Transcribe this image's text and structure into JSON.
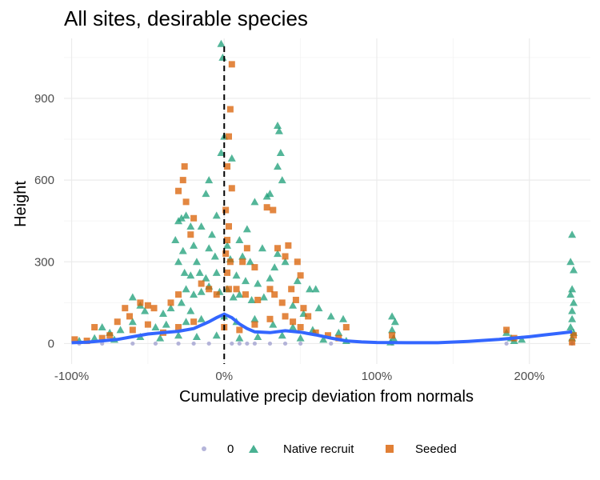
{
  "chart_data": {
    "type": "scatter",
    "title": "All sites, desirable species",
    "xlabel": "Cumulative precip deviation from normals",
    "ylabel": "Height",
    "xlim": [
      -1.05,
      2.4
    ],
    "ylim": [
      -75,
      1120
    ],
    "x_ticks": [
      -1,
      0,
      1,
      2
    ],
    "x_tick_labels": [
      "-100%",
      "0%",
      "100%",
      "200%"
    ],
    "y_ticks": [
      0,
      300,
      600,
      900
    ],
    "y_tick_labels": [
      "0",
      "300",
      "600",
      "900"
    ],
    "vline": {
      "x": 0,
      "style": "dashed"
    },
    "grid": true,
    "legend_position": "bottom",
    "colors": {
      "zero": "#a3a3d1",
      "native": "#1b9e77",
      "seeded": "#d95f02",
      "smooth": "#3366ff"
    },
    "series": [
      {
        "name": "0",
        "marker": "circle",
        "points": [
          [
            -0.95,
            0
          ],
          [
            -0.8,
            0
          ],
          [
            -0.6,
            0
          ],
          [
            -0.45,
            0
          ],
          [
            -0.3,
            0
          ],
          [
            -0.2,
            0
          ],
          [
            -0.1,
            0
          ],
          [
            0.05,
            0
          ],
          [
            0.1,
            0
          ],
          [
            0.15,
            0
          ],
          [
            0.2,
            0
          ],
          [
            0.3,
            0
          ],
          [
            0.4,
            0
          ],
          [
            0.5,
            0
          ],
          [
            0.7,
            0
          ],
          [
            1.1,
            0
          ],
          [
            1.85,
            0
          ],
          [
            2.28,
            0
          ]
        ]
      },
      {
        "name": "Native recruit",
        "marker": "triangle",
        "points": [
          [
            -0.02,
            1100
          ],
          [
            -0.01,
            1050
          ],
          [
            0.35,
            800
          ],
          [
            0.36,
            780
          ],
          [
            0.38,
            600
          ],
          [
            0.35,
            650
          ],
          [
            -0.12,
            550
          ],
          [
            -0.1,
            600
          ],
          [
            -0.02,
            700
          ],
          [
            0.0,
            760
          ],
          [
            0.05,
            680
          ],
          [
            0.3,
            550
          ],
          [
            0.37,
            700
          ],
          [
            0.2,
            520
          ],
          [
            0.28,
            540
          ],
          [
            -0.28,
            460
          ],
          [
            -0.25,
            470
          ],
          [
            -0.22,
            430
          ],
          [
            -0.3,
            450
          ],
          [
            -0.15,
            430
          ],
          [
            -0.05,
            470
          ],
          [
            0.1,
            380
          ],
          [
            0.15,
            420
          ],
          [
            -0.32,
            380
          ],
          [
            -0.27,
            340
          ],
          [
            -0.2,
            360
          ],
          [
            -0.18,
            300
          ],
          [
            -0.1,
            350
          ],
          [
            -0.08,
            400
          ],
          [
            -0.06,
            320
          ],
          [
            0.02,
            360
          ],
          [
            0.04,
            310
          ],
          [
            0.12,
            320
          ],
          [
            0.17,
            300
          ],
          [
            0.25,
            350
          ],
          [
            0.33,
            280
          ],
          [
            0.35,
            330
          ],
          [
            0.4,
            300
          ],
          [
            0.48,
            230
          ],
          [
            0.56,
            200
          ],
          [
            0.6,
            200
          ],
          [
            -0.3,
            300
          ],
          [
            -0.26,
            260
          ],
          [
            -0.22,
            250
          ],
          [
            -0.16,
            260
          ],
          [
            -0.12,
            240
          ],
          [
            -0.05,
            260
          ],
          [
            0.08,
            250
          ],
          [
            0.14,
            230
          ],
          [
            0.22,
            220
          ],
          [
            0.3,
            240
          ],
          [
            -0.25,
            200
          ],
          [
            -0.2,
            180
          ],
          [
            -0.15,
            190
          ],
          [
            -0.1,
            210
          ],
          [
            -0.03,
            190
          ],
          [
            0.02,
            200
          ],
          [
            0.06,
            170
          ],
          [
            0.1,
            180
          ],
          [
            0.18,
            160
          ],
          [
            0.26,
            170
          ],
          [
            -0.6,
            170
          ],
          [
            -0.55,
            140
          ],
          [
            -0.52,
            120
          ],
          [
            -0.4,
            110
          ],
          [
            -0.35,
            130
          ],
          [
            -0.28,
            150
          ],
          [
            -0.22,
            120
          ],
          [
            0.45,
            140
          ],
          [
            0.52,
            110
          ],
          [
            0.62,
            130
          ],
          [
            0.7,
            100
          ],
          [
            0.78,
            90
          ],
          [
            -0.8,
            60
          ],
          [
            -0.75,
            40
          ],
          [
            -0.68,
            50
          ],
          [
            -0.6,
            80
          ],
          [
            -0.45,
            60
          ],
          [
            -0.38,
            70
          ],
          [
            -0.25,
            80
          ],
          [
            -0.15,
            90
          ],
          [
            0.0,
            100
          ],
          [
            0.08,
            80
          ],
          [
            0.2,
            90
          ],
          [
            0.32,
            70
          ],
          [
            0.45,
            60
          ],
          [
            0.58,
            50
          ],
          [
            0.75,
            40
          ],
          [
            -0.95,
            10
          ],
          [
            -0.85,
            20
          ],
          [
            -0.72,
            15
          ],
          [
            -0.55,
            25
          ],
          [
            -0.42,
            20
          ],
          [
            -0.3,
            30
          ],
          [
            -0.18,
            25
          ],
          [
            -0.05,
            30
          ],
          [
            0.1,
            20
          ],
          [
            0.22,
            25
          ],
          [
            0.38,
            30
          ],
          [
            0.5,
            20
          ],
          [
            0.65,
            15
          ],
          [
            0.8,
            10
          ],
          [
            1.1,
            100
          ],
          [
            1.12,
            80
          ],
          [
            1.1,
            50
          ],
          [
            1.11,
            20
          ],
          [
            1.09,
            5
          ],
          [
            1.85,
            40
          ],
          [
            1.88,
            20
          ],
          [
            1.9,
            10
          ],
          [
            1.95,
            15
          ],
          [
            2.28,
            400
          ],
          [
            2.27,
            300
          ],
          [
            2.29,
            270
          ],
          [
            2.28,
            200
          ],
          [
            2.27,
            180
          ],
          [
            2.29,
            150
          ],
          [
            2.28,
            120
          ],
          [
            2.28,
            90
          ],
          [
            2.27,
            60
          ],
          [
            2.29,
            40
          ],
          [
            2.28,
            20
          ]
        ]
      },
      {
        "name": "Seeded",
        "marker": "square",
        "points": [
          [
            0.05,
            1025
          ],
          [
            0.04,
            860
          ],
          [
            0.03,
            760
          ],
          [
            0.02,
            650
          ],
          [
            0.05,
            570
          ],
          [
            0.01,
            490
          ],
          [
            0.03,
            430
          ],
          [
            0.02,
            380
          ],
          [
            0.01,
            330
          ],
          [
            0.04,
            300
          ],
          [
            0.02,
            260
          ],
          [
            0.03,
            200
          ],
          [
            -0.26,
            650
          ],
          [
            -0.27,
            600
          ],
          [
            -0.3,
            560
          ],
          [
            -0.25,
            520
          ],
          [
            -0.2,
            460
          ],
          [
            -0.22,
            400
          ],
          [
            0.28,
            500
          ],
          [
            0.32,
            490
          ],
          [
            0.15,
            350
          ],
          [
            0.12,
            300
          ],
          [
            0.2,
            280
          ],
          [
            0.35,
            350
          ],
          [
            0.4,
            320
          ],
          [
            0.42,
            360
          ],
          [
            0.48,
            300
          ],
          [
            0.5,
            250
          ],
          [
            -0.55,
            150
          ],
          [
            -0.5,
            140
          ],
          [
            -0.46,
            130
          ],
          [
            -0.65,
            130
          ],
          [
            -0.62,
            100
          ],
          [
            -0.35,
            150
          ],
          [
            -0.3,
            180
          ],
          [
            -0.15,
            220
          ],
          [
            -0.1,
            200
          ],
          [
            -0.05,
            180
          ],
          [
            0.08,
            200
          ],
          [
            0.14,
            180
          ],
          [
            0.22,
            160
          ],
          [
            0.3,
            200
          ],
          [
            0.33,
            180
          ],
          [
            0.38,
            150
          ],
          [
            0.44,
            200
          ],
          [
            0.47,
            160
          ],
          [
            0.52,
            130
          ],
          [
            0.55,
            100
          ],
          [
            -0.85,
            60
          ],
          [
            -0.8,
            20
          ],
          [
            -0.75,
            30
          ],
          [
            -0.7,
            80
          ],
          [
            -0.6,
            50
          ],
          [
            -0.5,
            70
          ],
          [
            -0.4,
            40
          ],
          [
            -0.3,
            60
          ],
          [
            -0.2,
            80
          ],
          [
            0.0,
            60
          ],
          [
            0.1,
            50
          ],
          [
            0.2,
            70
          ],
          [
            0.3,
            90
          ],
          [
            0.4,
            100
          ],
          [
            0.45,
            80
          ],
          [
            0.5,
            60
          ],
          [
            0.6,
            40
          ],
          [
            0.68,
            30
          ],
          [
            0.75,
            20
          ],
          [
            0.8,
            60
          ],
          [
            -0.98,
            15
          ],
          [
            -0.9,
            10
          ],
          [
            1.1,
            30
          ],
          [
            1.85,
            50
          ],
          [
            1.9,
            20
          ],
          [
            2.28,
            5
          ],
          [
            2.29,
            30
          ]
        ]
      },
      {
        "name": "",
        "marker": "smooth-line",
        "points": [
          [
            -1.0,
            3
          ],
          [
            -0.9,
            5
          ],
          [
            -0.8,
            10
          ],
          [
            -0.7,
            15
          ],
          [
            -0.6,
            25
          ],
          [
            -0.5,
            35
          ],
          [
            -0.4,
            40
          ],
          [
            -0.3,
            45
          ],
          [
            -0.2,
            55
          ],
          [
            -0.1,
            80
          ],
          [
            -0.05,
            95
          ],
          [
            0.0,
            108
          ],
          [
            0.05,
            95
          ],
          [
            0.1,
            72
          ],
          [
            0.15,
            55
          ],
          [
            0.2,
            43
          ],
          [
            0.3,
            40
          ],
          [
            0.4,
            47
          ],
          [
            0.5,
            42
          ],
          [
            0.6,
            32
          ],
          [
            0.7,
            20
          ],
          [
            0.8,
            10
          ],
          [
            0.9,
            6
          ],
          [
            1.0,
            4
          ],
          [
            1.2,
            3
          ],
          [
            1.4,
            3
          ],
          [
            1.6,
            8
          ],
          [
            1.8,
            15
          ],
          [
            2.0,
            25
          ],
          [
            2.1,
            32
          ],
          [
            2.2,
            38
          ],
          [
            2.28,
            43
          ]
        ]
      }
    ]
  }
}
